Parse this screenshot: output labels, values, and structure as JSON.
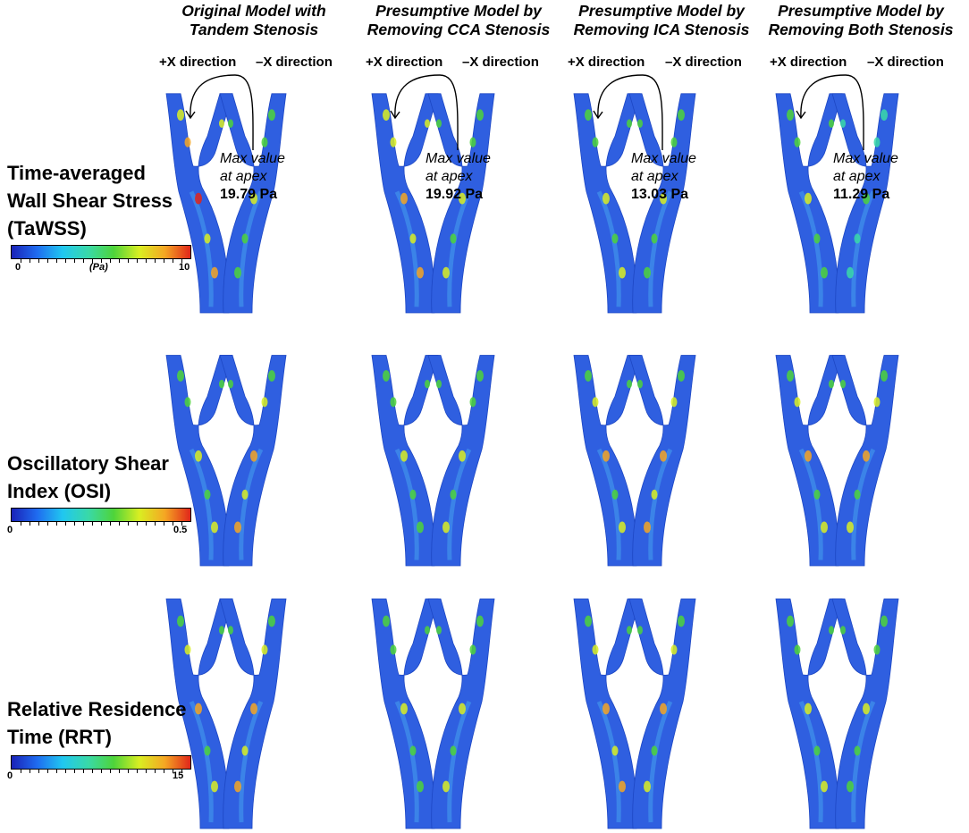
{
  "columns": [
    {
      "title_line1": "Original Model with",
      "title_line2": "Tandem Stenosis",
      "max_label_line1": "Max value",
      "max_label_line2": "at apex",
      "max_value": "19.79 Pa"
    },
    {
      "title_line1": "Presumptive Model by",
      "title_line2": "Removing CCA Stenosis",
      "max_label_line1": "Max value",
      "max_label_line2": "at apex",
      "max_value": "19.92 Pa"
    },
    {
      "title_line1": "Presumptive Model by",
      "title_line2": "Removing ICA Stenosis",
      "max_label_line1": "Max value",
      "max_label_line2": "at apex",
      "max_value": "13.03 Pa"
    },
    {
      "title_line1": "Presumptive Model by",
      "title_line2": "Removing Both Stenosis",
      "max_label_line1": "Max value",
      "max_label_line2": "at apex",
      "max_value": "11.29 Pa"
    }
  ],
  "directions": {
    "plus": "+X direction",
    "minus": "–X direction"
  },
  "rows": [
    {
      "label_line1": "Time-averaged",
      "label_line2": "Wall Shear Stress",
      "label_line3": "(TaWSS)",
      "cbar_min": "0",
      "cbar_max": "10",
      "cbar_unit": "(Pa)"
    },
    {
      "label_line1": "Oscillatory Shear",
      "label_line2": "Index (OSI)",
      "cbar_min": "0",
      "cbar_max": "0.5"
    },
    {
      "label_line1": "Relative Residence",
      "label_line2": "Time (RRT)",
      "cbar_min": "0",
      "cbar_max": "15"
    }
  ],
  "colormap": [
    "#1a22b8",
    "#1f6cf0",
    "#20c7f0",
    "#39d9a8",
    "#4ed43a",
    "#d9ee22",
    "#f5a623",
    "#e0261a"
  ],
  "vessel_base_color": "#2f5fe0"
}
